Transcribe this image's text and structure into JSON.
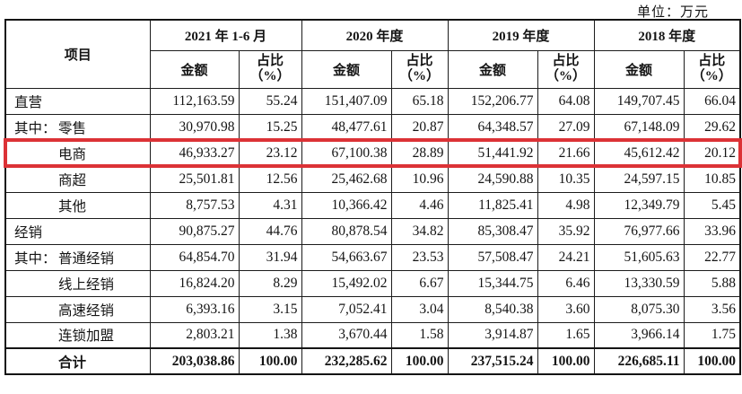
{
  "unit_label": "单位：万元",
  "colors": {
    "highlight_red": "#dc3236",
    "border_black": "#1c1c1c",
    "background": "#ffffff"
  },
  "table": {
    "item_header": "项目",
    "period_groups": [
      {
        "label": "2021 年 1-6 月"
      },
      {
        "label": "2020 年度"
      },
      {
        "label": "2019 年度"
      },
      {
        "label": "2018 年度"
      }
    ],
    "sub_headers": {
      "amount": "金额",
      "ratio": "占比\n（%）"
    },
    "rows": [
      {
        "prefix": "",
        "label": "直营",
        "indent": false,
        "highlight": false,
        "total": false,
        "values": [
          "112,163.59",
          "55.24",
          "151,407.09",
          "65.18",
          "152,206.77",
          "64.08",
          "149,707.45",
          "66.04"
        ]
      },
      {
        "prefix": "其中：",
        "label": "零售",
        "indent": false,
        "highlight": false,
        "total": false,
        "values": [
          "30,970.98",
          "15.25",
          "48,477.61",
          "20.87",
          "64,348.57",
          "27.09",
          "67,148.09",
          "29.62"
        ]
      },
      {
        "prefix": "",
        "label": "电商",
        "indent": true,
        "highlight": true,
        "total": false,
        "values": [
          "46,933.27",
          "23.12",
          "67,100.38",
          "28.89",
          "51,441.92",
          "21.66",
          "45,612.42",
          "20.12"
        ]
      },
      {
        "prefix": "",
        "label": "商超",
        "indent": true,
        "highlight": false,
        "total": false,
        "values": [
          "25,501.81",
          "12.56",
          "25,462.68",
          "10.96",
          "24,590.88",
          "10.35",
          "24,597.15",
          "10.85"
        ]
      },
      {
        "prefix": "",
        "label": "其他",
        "indent": true,
        "highlight": false,
        "total": false,
        "values": [
          "8,757.53",
          "4.31",
          "10,366.42",
          "4.46",
          "11,825.41",
          "4.98",
          "12,349.79",
          "5.45"
        ]
      },
      {
        "prefix": "",
        "label": "经销",
        "indent": false,
        "highlight": false,
        "total": false,
        "values": [
          "90,875.27",
          "44.76",
          "80,878.54",
          "34.82",
          "85,308.47",
          "35.92",
          "76,977.66",
          "33.96"
        ]
      },
      {
        "prefix": "其中：",
        "label": "普通经销",
        "indent": false,
        "highlight": false,
        "total": false,
        "values": [
          "64,854.70",
          "31.94",
          "54,663.67",
          "23.53",
          "57,508.47",
          "24.21",
          "51,605.63",
          "22.77"
        ]
      },
      {
        "prefix": "",
        "label": "线上经销",
        "indent": true,
        "highlight": false,
        "total": false,
        "values": [
          "16,824.20",
          "8.29",
          "15,492.02",
          "6.67",
          "15,344.75",
          "6.46",
          "13,330.59",
          "5.88"
        ]
      },
      {
        "prefix": "",
        "label": "高速经销",
        "indent": true,
        "highlight": false,
        "total": false,
        "values": [
          "6,393.16",
          "3.15",
          "7,052.41",
          "3.04",
          "8,540.38",
          "3.60",
          "8,075.30",
          "3.56"
        ]
      },
      {
        "prefix": "",
        "label": "连锁加盟",
        "indent": true,
        "highlight": false,
        "total": false,
        "values": [
          "2,803.21",
          "1.38",
          "3,670.44",
          "1.58",
          "3,914.87",
          "1.65",
          "3,966.14",
          "1.75"
        ]
      },
      {
        "prefix": "",
        "label": "合计",
        "indent": true,
        "highlight": false,
        "total": true,
        "values": [
          "203,038.86",
          "100.00",
          "232,285.62",
          "100.00",
          "237,515.24",
          "100.00",
          "226,685.11",
          "100.00"
        ]
      }
    ]
  }
}
